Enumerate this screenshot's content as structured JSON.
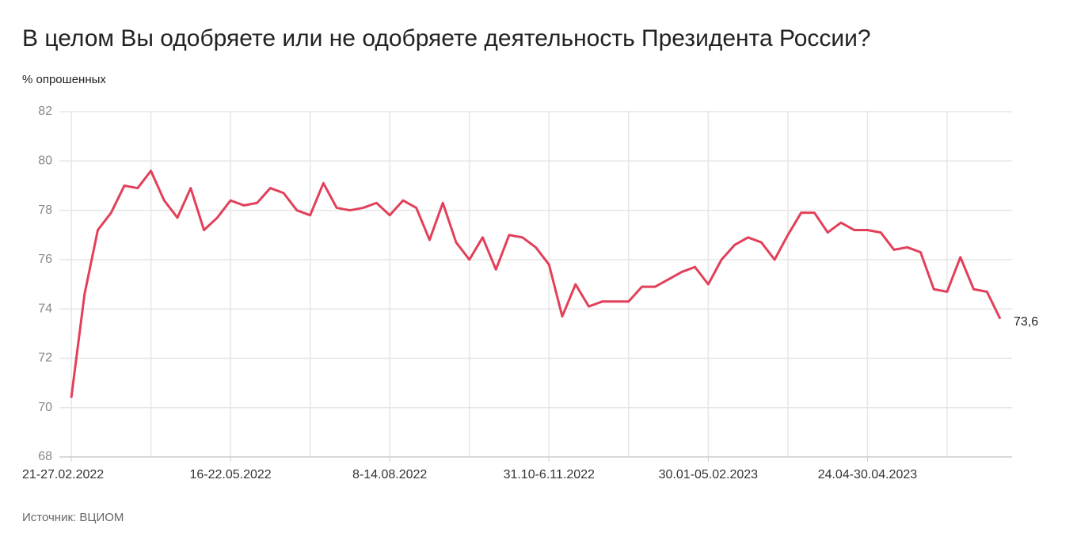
{
  "chart_data": {
    "type": "line",
    "title": "В целом Вы одобряете или не одобряете деятельность Президента России?",
    "subtitle": "% опрошенных",
    "source": "Источник: ВЦИОМ",
    "categories": [
      "21-27.02.2022",
      null,
      null,
      null,
      null,
      null,
      null,
      null,
      null,
      null,
      null,
      null,
      "16-22.05.2022",
      null,
      null,
      null,
      null,
      null,
      null,
      null,
      null,
      null,
      null,
      null,
      "8-14.08.2022",
      null,
      null,
      null,
      null,
      null,
      null,
      null,
      null,
      null,
      null,
      null,
      "31.10-6.11.2022",
      null,
      null,
      null,
      null,
      null,
      null,
      null,
      null,
      null,
      null,
      null,
      "30.01-05.02.2023",
      null,
      null,
      null,
      null,
      null,
      null,
      null,
      null,
      null,
      null,
      null,
      "24.04-30.04.2023",
      null,
      null,
      null,
      null,
      null,
      null,
      null,
      null,
      null,
      null
    ],
    "series": [
      {
        "color": "#e2405a",
        "values": [
          70.4,
          74.6,
          77.2,
          77.9,
          79.0,
          78.9,
          79.6,
          78.4,
          77.7,
          78.9,
          77.2,
          77.7,
          78.4,
          78.2,
          78.3,
          78.9,
          78.7,
          78.0,
          77.8,
          79.1,
          78.1,
          78.0,
          78.1,
          78.3,
          77.8,
          78.4,
          78.1,
          76.8,
          78.3,
          76.7,
          76.0,
          76.9,
          75.6,
          77.0,
          76.9,
          76.5,
          75.8,
          73.7,
          75.0,
          74.1,
          74.3,
          74.3,
          74.3,
          74.9,
          74.9,
          75.2,
          75.5,
          75.7,
          75.0,
          76.0,
          76.6,
          76.9,
          76.7,
          76.0,
          77.0,
          77.9,
          77.9,
          77.1,
          77.5,
          77.2,
          77.2,
          77.1,
          76.4,
          76.5,
          76.3,
          74.8,
          74.7,
          76.1,
          74.8,
          74.7,
          73.6
        ],
        "value_labels": [
          null,
          null,
          null,
          null,
          null,
          null,
          null,
          null,
          null,
          null,
          null,
          null,
          null,
          null,
          null,
          null,
          null,
          null,
          null,
          null,
          null,
          null,
          null,
          null,
          null,
          null,
          null,
          null,
          null,
          null,
          null,
          null,
          null,
          null,
          null,
          null,
          null,
          null,
          null,
          null,
          null,
          null,
          null,
          null,
          null,
          null,
          null,
          null,
          null,
          null,
          null,
          null,
          null,
          null,
          null,
          null,
          null,
          null,
          null,
          null,
          null,
          null,
          null,
          null,
          null,
          null,
          null,
          null,
          null,
          null,
          "73,6"
        ]
      }
    ],
    "ylim": [
      68,
      82
    ],
    "yticks": [
      68,
      70,
      72,
      74,
      76,
      78,
      80,
      82
    ],
    "grid": true
  }
}
